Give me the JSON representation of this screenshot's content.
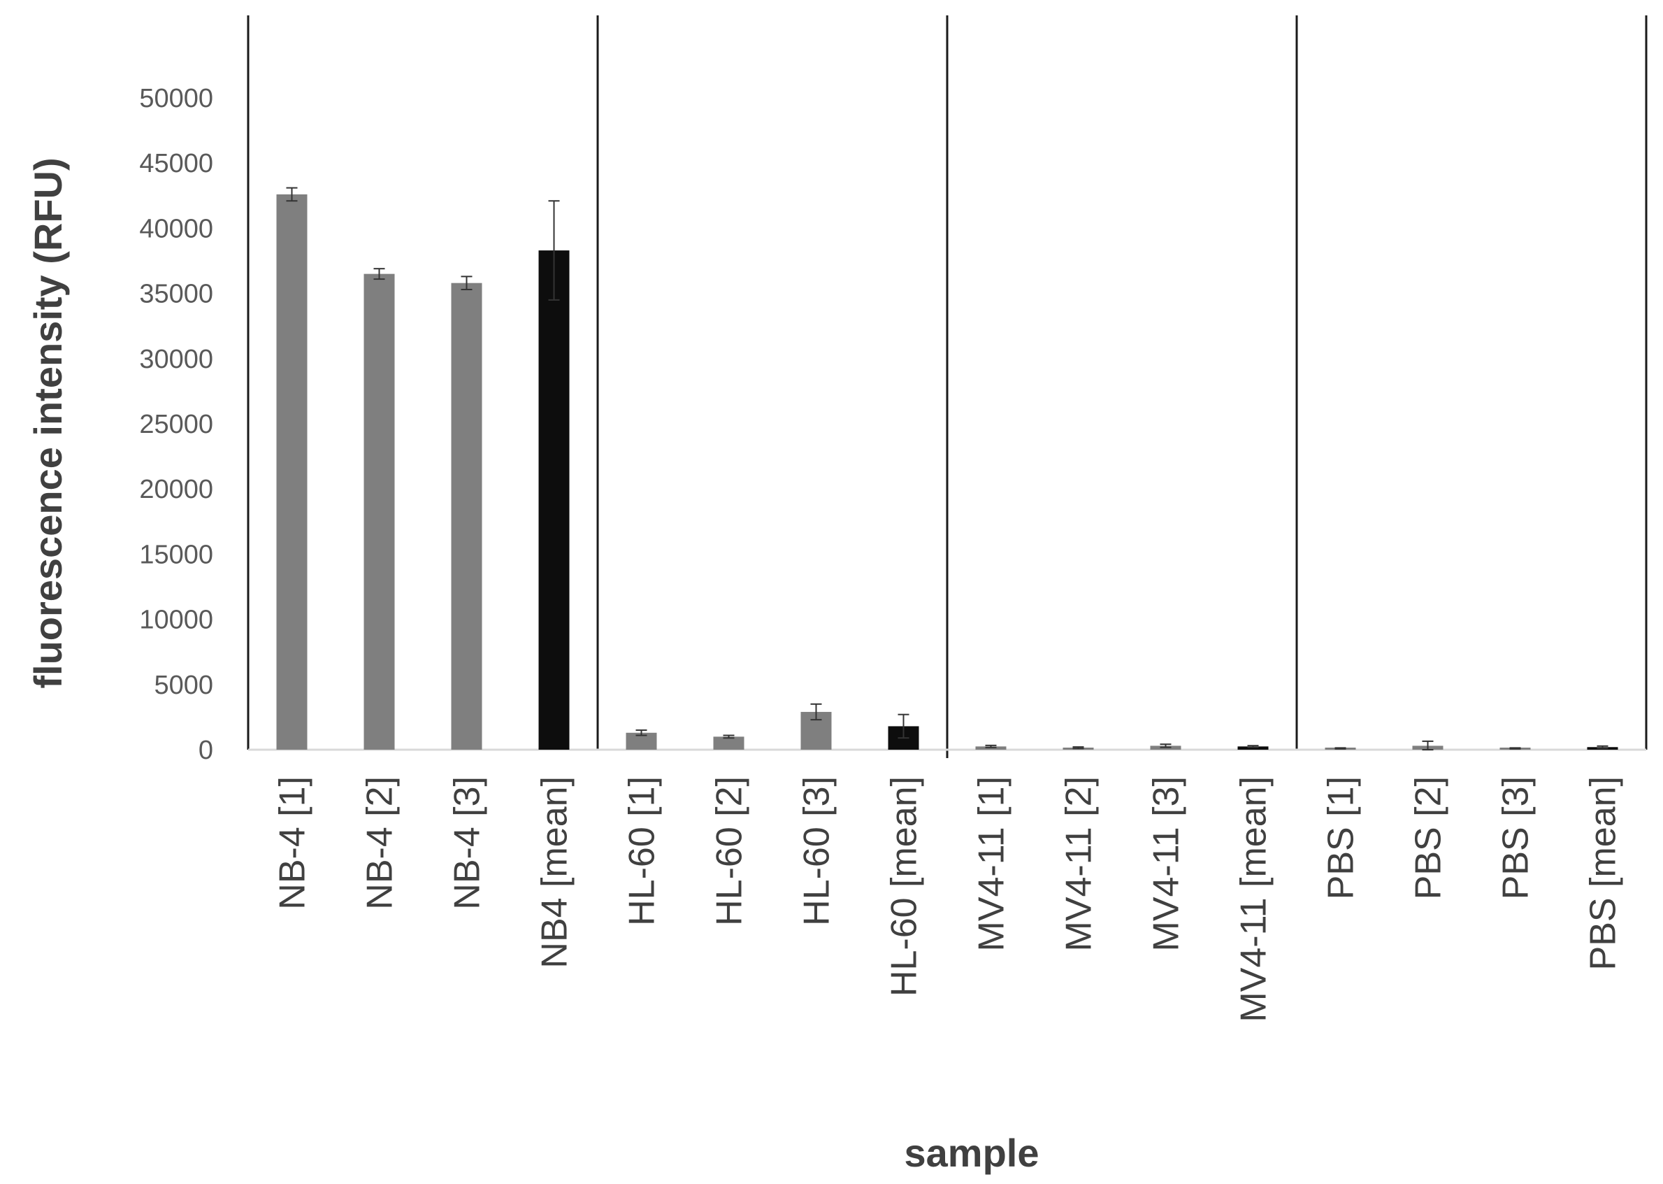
{
  "chart_data": {
    "type": "bar",
    "title": "",
    "xlabel": "sample",
    "ylabel": "fluorescence intensity (RFU)",
    "ylim": [
      0,
      50000
    ],
    "yticks": [
      "0",
      "5000",
      "10000",
      "15000",
      "20000",
      "25000",
      "30000",
      "35000",
      "40000",
      "45000",
      "50000"
    ],
    "grid": false,
    "legend": "none",
    "categories": [
      "NB-4 [1]",
      "NB-4 [2]",
      "NB-4 [3]",
      "NB4 [mean]",
      "HL-60 [1]",
      "HL-60 [2]",
      "HL-60 [3]",
      "HL-60 [mean]",
      "MV4-11 [1]",
      "MV4-11 [2]",
      "MV4-11 [3]",
      "MV4-11 [mean]",
      "PBS [1]",
      "PBS [2]",
      "PBS [3]",
      "PBS [mean]"
    ],
    "values": [
      42600,
      36500,
      35800,
      38300,
      1300,
      1000,
      2900,
      1800,
      250,
      150,
      300,
      250,
      100,
      300,
      100,
      200
    ],
    "errors": [
      500,
      400,
      500,
      3800,
      200,
      100,
      600,
      900,
      80,
      60,
      120,
      60,
      40,
      350,
      40,
      80
    ],
    "bar_colors": [
      "#7f7f7f",
      "#7f7f7f",
      "#7f7f7f",
      "#0d0d0d",
      "#7f7f7f",
      "#7f7f7f",
      "#7f7f7f",
      "#0d0d0d",
      "#7f7f7f",
      "#7f7f7f",
      "#7f7f7f",
      "#0d0d0d",
      "#7f7f7f",
      "#7f7f7f",
      "#7f7f7f",
      "#0d0d0d"
    ],
    "group_separators": true
  }
}
